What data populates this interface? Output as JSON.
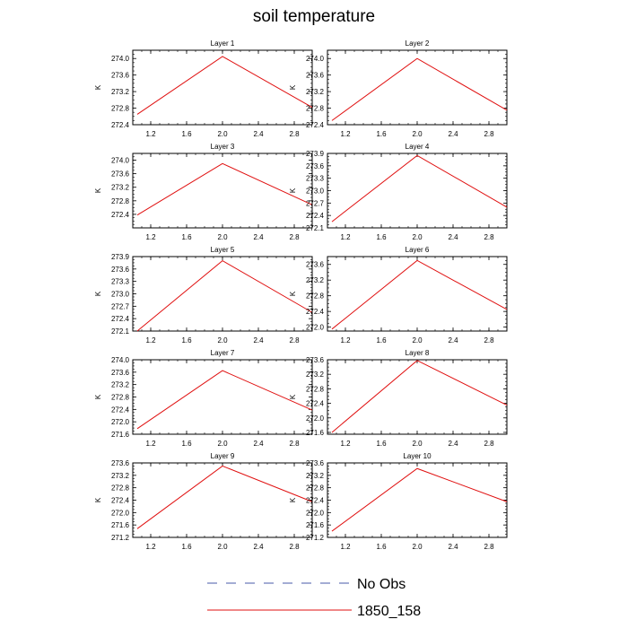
{
  "figure": {
    "title": "soil temperature"
  },
  "legend": [
    {
      "label": "No Obs",
      "color": "#4a5aa8",
      "dash": true
    },
    {
      "label": "1850_158",
      "color": "#e01010",
      "dash": false
    }
  ],
  "chart_data": [
    {
      "type": "line",
      "title": "Layer 1",
      "ylabel": "K",
      "xlim": [
        1.0,
        3.0
      ],
      "ylim": [
        272.4,
        274.2
      ],
      "xticks": [
        1.2,
        1.6,
        2.0,
        2.4,
        2.8
      ],
      "xtick_labels": [
        "1.2",
        "1.6",
        "2.0",
        "2.4",
        "2.8"
      ],
      "yticks": [
        272.4,
        272.8,
        273.2,
        273.6,
        274.0
      ],
      "ytick_labels": [
        "272.4",
        "272.8",
        "273.2",
        "273.6",
        "274.0"
      ],
      "series": [
        {
          "name": "1850_158",
          "color": "#e01010",
          "x": [
            1.05,
            2.0,
            3.0
          ],
          "y": [
            272.65,
            274.05,
            272.82
          ]
        }
      ]
    },
    {
      "type": "line",
      "title": "Layer 2",
      "ylabel": "K",
      "xlim": [
        1.0,
        3.0
      ],
      "ylim": [
        272.4,
        274.2
      ],
      "xticks": [
        1.2,
        1.6,
        2.0,
        2.4,
        2.8
      ],
      "xtick_labels": [
        "1.2",
        "1.6",
        "2.0",
        "2.4",
        "2.8"
      ],
      "yticks": [
        272.4,
        272.8,
        273.2,
        273.6,
        274.0
      ],
      "ytick_labels": [
        "272.4",
        "272.8",
        "273.2",
        "273.6",
        "274.0"
      ],
      "series": [
        {
          "name": "1850_158",
          "color": "#e01010",
          "x": [
            1.05,
            2.0,
            3.0
          ],
          "y": [
            272.5,
            274.0,
            272.75
          ]
        }
      ]
    },
    {
      "type": "line",
      "title": "Layer 3",
      "ylabel": "K",
      "xlim": [
        1.0,
        3.0
      ],
      "ylim": [
        272.0,
        274.2
      ],
      "xticks": [
        1.2,
        1.6,
        2.0,
        2.4,
        2.8
      ],
      "xtick_labels": [
        "1.2",
        "1.6",
        "2.0",
        "2.4",
        "2.8"
      ],
      "yticks": [
        272.4,
        272.8,
        273.2,
        273.6,
        274.0
      ],
      "ytick_labels": [
        "272.4",
        "272.8",
        "273.2",
        "273.6",
        "274.0"
      ],
      "series": [
        {
          "name": "1850_158",
          "color": "#e01010",
          "x": [
            1.05,
            2.0,
            3.0
          ],
          "y": [
            272.38,
            273.9,
            272.68
          ]
        }
      ]
    },
    {
      "type": "line",
      "title": "Layer 4",
      "ylabel": "K",
      "xlim": [
        1.0,
        3.0
      ],
      "ylim": [
        272.1,
        273.9
      ],
      "xticks": [
        1.2,
        1.6,
        2.0,
        2.4,
        2.8
      ],
      "xtick_labels": [
        "1.2",
        "1.6",
        "2.0",
        "2.4",
        "2.8"
      ],
      "yticks": [
        272.1,
        272.4,
        272.7,
        273.0,
        273.3,
        273.6,
        273.9
      ],
      "ytick_labels": [
        "272.1",
        "272.4",
        "272.7",
        "273.0",
        "273.3",
        "273.6",
        "273.9"
      ],
      "series": [
        {
          "name": "1850_158",
          "color": "#e01010",
          "x": [
            1.05,
            2.0,
            3.0
          ],
          "y": [
            272.25,
            273.85,
            272.6
          ]
        }
      ]
    },
    {
      "type": "line",
      "title": "Layer 5",
      "ylabel": "K",
      "xlim": [
        1.0,
        3.0
      ],
      "ylim": [
        272.1,
        273.9
      ],
      "xticks": [
        1.2,
        1.6,
        2.0,
        2.4,
        2.8
      ],
      "xtick_labels": [
        "1.2",
        "1.6",
        "2.0",
        "2.4",
        "2.8"
      ],
      "yticks": [
        272.1,
        272.4,
        272.7,
        273.0,
        273.3,
        273.6,
        273.9
      ],
      "ytick_labels": [
        "272.1",
        "272.4",
        "272.7",
        "273.0",
        "273.3",
        "273.6",
        "273.9"
      ],
      "series": [
        {
          "name": "1850_158",
          "color": "#e01010",
          "x": [
            1.05,
            2.0,
            3.0
          ],
          "y": [
            272.1,
            273.8,
            272.55
          ]
        }
      ]
    },
    {
      "type": "line",
      "title": "Layer 6",
      "ylabel": "K",
      "xlim": [
        1.0,
        3.0
      ],
      "ylim": [
        271.9,
        273.8
      ],
      "xticks": [
        1.2,
        1.6,
        2.0,
        2.4,
        2.8
      ],
      "xtick_labels": [
        "1.2",
        "1.6",
        "2.0",
        "2.4",
        "2.8"
      ],
      "yticks": [
        272.0,
        272.4,
        272.8,
        273.2,
        273.6
      ],
      "ytick_labels": [
        "272.0",
        "272.4",
        "272.8",
        "273.2",
        "273.6"
      ],
      "series": [
        {
          "name": "1850_158",
          "color": "#e01010",
          "x": [
            1.05,
            2.0,
            3.0
          ],
          "y": [
            271.95,
            273.7,
            272.45
          ]
        }
      ]
    },
    {
      "type": "line",
      "title": "Layer 7",
      "ylabel": "K",
      "xlim": [
        1.0,
        3.0
      ],
      "ylim": [
        271.6,
        274.0
      ],
      "xticks": [
        1.2,
        1.6,
        2.0,
        2.4,
        2.8
      ],
      "xtick_labels": [
        "1.2",
        "1.6",
        "2.0",
        "2.4",
        "2.8"
      ],
      "yticks": [
        271.6,
        272.0,
        272.4,
        272.8,
        273.2,
        273.6,
        274.0
      ],
      "ytick_labels": [
        "271.6",
        "272.0",
        "272.4",
        "272.8",
        "273.2",
        "273.6",
        "274.0"
      ],
      "series": [
        {
          "name": "1850_158",
          "color": "#e01010",
          "x": [
            1.05,
            2.0,
            3.0
          ],
          "y": [
            271.78,
            273.65,
            272.38
          ]
        }
      ]
    },
    {
      "type": "line",
      "title": "Layer 8",
      "ylabel": "K",
      "xlim": [
        1.0,
        3.0
      ],
      "ylim": [
        271.55,
        273.6
      ],
      "xticks": [
        1.2,
        1.6,
        2.0,
        2.4,
        2.8
      ],
      "xtick_labels": [
        "1.2",
        "1.6",
        "2.0",
        "2.4",
        "2.8"
      ],
      "yticks": [
        271.6,
        272.0,
        272.4,
        272.8,
        273.2,
        273.6
      ],
      "ytick_labels": [
        "271.6",
        "272.0",
        "272.4",
        "272.8",
        "273.2",
        "273.6"
      ],
      "series": [
        {
          "name": "1850_158",
          "color": "#e01010",
          "x": [
            1.05,
            2.0,
            3.0
          ],
          "y": [
            271.6,
            273.58,
            272.35
          ]
        }
      ]
    },
    {
      "type": "line",
      "title": "Layer 9",
      "ylabel": "K",
      "xlim": [
        1.0,
        3.0
      ],
      "ylim": [
        271.2,
        273.6
      ],
      "xticks": [
        1.2,
        1.6,
        2.0,
        2.4,
        2.8
      ],
      "xtick_labels": [
        "1.2",
        "1.6",
        "2.0",
        "2.4",
        "2.8"
      ],
      "yticks": [
        271.2,
        271.6,
        272.0,
        272.4,
        272.8,
        273.2,
        273.6
      ],
      "ytick_labels": [
        "271.2",
        "271.6",
        "272.0",
        "272.4",
        "272.8",
        "273.2",
        "273.6"
      ],
      "series": [
        {
          "name": "1850_158",
          "color": "#e01010",
          "x": [
            1.05,
            2.0,
            3.0
          ],
          "y": [
            271.48,
            273.5,
            272.35
          ]
        }
      ]
    },
    {
      "type": "line",
      "title": "Layer 10",
      "ylabel": "K",
      "xlim": [
        1.0,
        3.0
      ],
      "ylim": [
        271.2,
        273.6
      ],
      "xticks": [
        1.2,
        1.6,
        2.0,
        2.4,
        2.8
      ],
      "xtick_labels": [
        "1.2",
        "1.6",
        "2.0",
        "2.4",
        "2.8"
      ],
      "yticks": [
        271.2,
        271.6,
        272.0,
        272.4,
        272.8,
        273.2,
        273.6
      ],
      "ytick_labels": [
        "271.2",
        "271.6",
        "272.0",
        "272.4",
        "272.8",
        "273.2",
        "273.6"
      ],
      "series": [
        {
          "name": "1850_158",
          "color": "#e01010",
          "x": [
            1.05,
            2.0,
            3.0
          ],
          "y": [
            271.4,
            273.42,
            272.35
          ]
        }
      ]
    }
  ]
}
